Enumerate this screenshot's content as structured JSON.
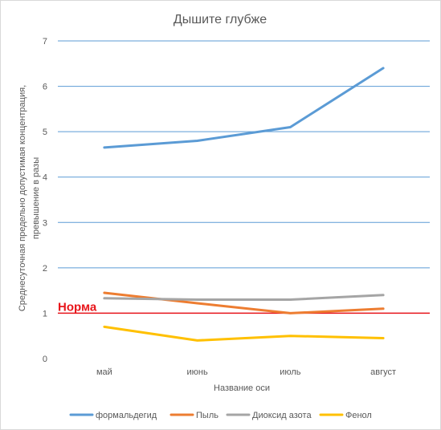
{
  "chart_data": {
    "type": "line",
    "title": "Дышите глубже",
    "xlabel": "Название оси",
    "ylabel_line1": "Среднесуточная  предельно  допустимая концентрация,",
    "ylabel_line2": "превышение  в разы",
    "categories": [
      "май",
      "июнь",
      "июль",
      "август"
    ],
    "ylim": [
      0,
      7
    ],
    "yticks": [
      "0",
      "1",
      "2",
      "3",
      "4",
      "5",
      "6",
      "7"
    ],
    "grid": true,
    "legend_position": "bottom",
    "series": [
      {
        "name": "формальдегид",
        "color": "#5b9bd5",
        "values": [
          4.65,
          4.8,
          5.1,
          6.4
        ]
      },
      {
        "name": "Пыль",
        "color": "#ed7d31",
        "values": [
          1.45,
          1.22,
          1.0,
          1.1
        ]
      },
      {
        "name": "Диоксид азота",
        "color": "#a5a5a5",
        "values": [
          1.33,
          1.3,
          1.3,
          1.4
        ]
      },
      {
        "name": "Фенол",
        "color": "#ffc000",
        "values": [
          0.7,
          0.4,
          0.5,
          0.45
        ]
      }
    ],
    "reference_line": {
      "label": "Норма",
      "value": 1,
      "color": "#e8161b"
    }
  }
}
